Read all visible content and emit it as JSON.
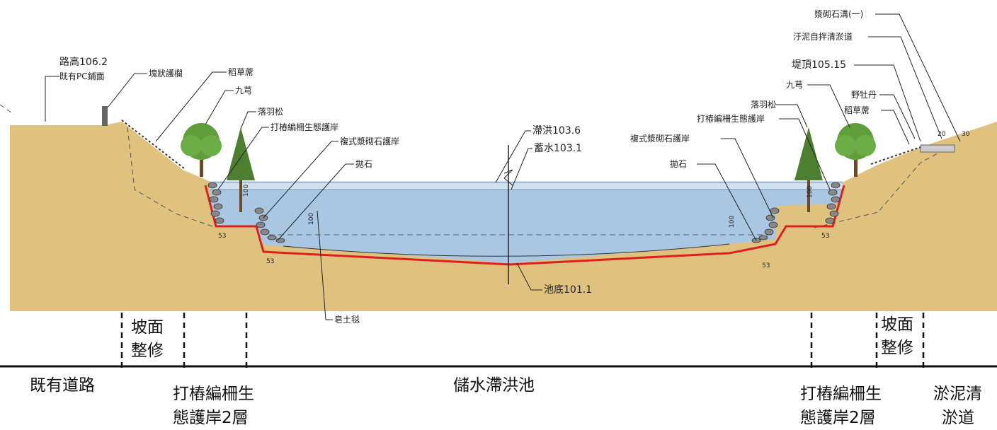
{
  "colors": {
    "soil": "#E0C27F",
    "water": "#A9C6E2",
    "water_surface": "#CFE0EE",
    "liner_red": "#E11E1E",
    "tree_green": "#5F9E3A",
    "tree_dark": "#4C7F2E",
    "text": "#222222"
  },
  "callouts_left": {
    "road": "路高106.2",
    "pc_paving": "既有PC鋪面",
    "guardrail": "塊狀護欄",
    "straw_mat": "稻草蓆",
    "murraya": "九芎",
    "cypress": "落羽松",
    "pile_revetment": "打樁編柵生態護岸",
    "masonry_revetment": "複式漿砌石護岸",
    "riprap": "拋石",
    "liner": "皂土毯"
  },
  "callouts_center": {
    "flood_level": "滯洪103.6",
    "storage_level": "蓄水103.1",
    "pool_bottom": "池底101.1"
  },
  "callouts_right": {
    "ditch": "漿砌石溝(一)",
    "desilting_road": "汙泥自拌清淤道",
    "bank_top": "堤頂105.15",
    "murraya": "九芎",
    "peony": "野牡丹",
    "cypress": "落羽松",
    "straw_mat": "稻草蓆",
    "pile_revetment": "打樁編柵生態護岸",
    "masonry_revetment": "複式漿砌石護岸",
    "riprap": "拋石"
  },
  "dimensions": {
    "d100": "100",
    "d53": "53",
    "d20": "20",
    "d30": "30"
  },
  "zones": {
    "slope_repair": "坡面整修",
    "existing_road": "既有道路",
    "pile_fence_l1": "打樁編柵生",
    "pile_fence_l2": "態護岸2層",
    "detention_pond": "儲水滯洪池",
    "desilt_l1": "淤泥清",
    "desilt_l2": "淤道"
  }
}
